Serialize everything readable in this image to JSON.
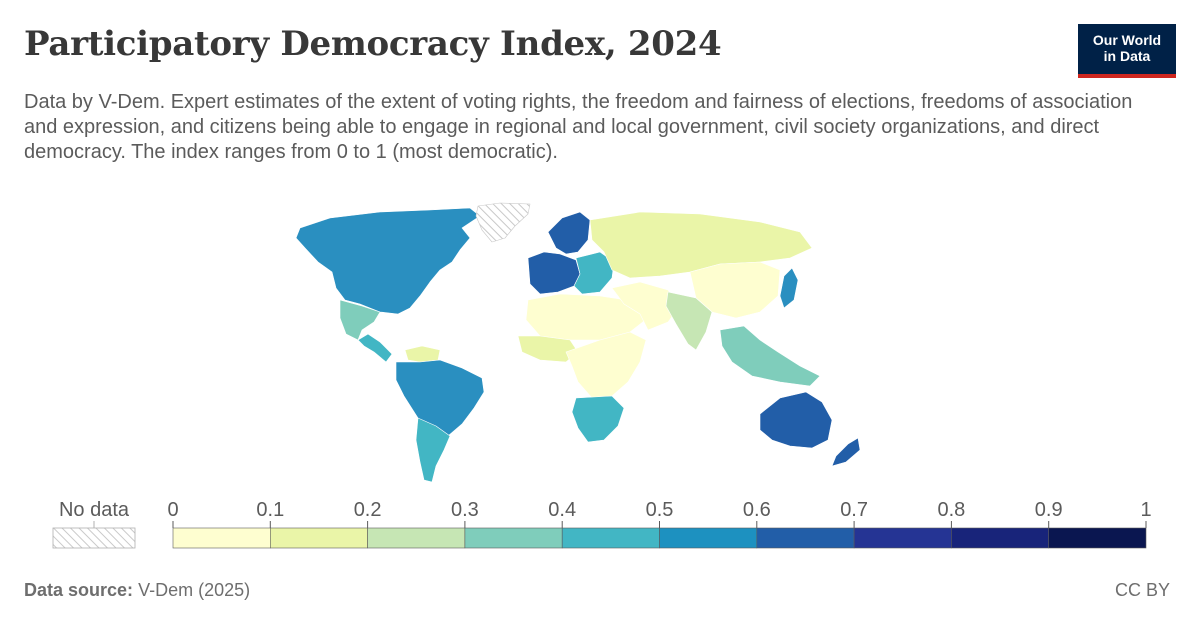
{
  "header": {
    "title": "Participatory Democracy Index, 2024",
    "subtitle": "Data by V-Dem. Expert estimates of the extent of voting rights, the freedom and fairness of elections, freedoms of association and expression, and citizens being able to engage in regional and local government, civil society organizations, and direct democracy. The index ranges from 0 to 1 (most democratic).",
    "logo_line1": "Our World",
    "logo_line2": "in Data"
  },
  "legend": {
    "no_data_label": "No data",
    "ticks": [
      "0",
      "0.1",
      "0.2",
      "0.3",
      "0.4",
      "0.5",
      "0.6",
      "0.7",
      "0.8",
      "0.9",
      "1"
    ],
    "bins": [
      {
        "range": [
          0,
          0.1
        ],
        "color": "#fefed0"
      },
      {
        "range": [
          0.1,
          0.2
        ],
        "color": "#eaf5a8"
      },
      {
        "range": [
          0.2,
          0.3
        ],
        "color": "#c6e6b4"
      },
      {
        "range": [
          0.3,
          0.4
        ],
        "color": "#7fcdbb"
      },
      {
        "range": [
          0.4,
          0.5
        ],
        "color": "#42b6c4"
      },
      {
        "range": [
          0.5,
          0.6
        ],
        "color": "#1d91c0"
      },
      {
        "range": [
          0.6,
          0.7
        ],
        "color": "#225ea8"
      },
      {
        "range": [
          0.7,
          0.8
        ],
        "color": "#253494"
      },
      {
        "range": [
          0.8,
          0.9
        ],
        "color": "#18247a"
      },
      {
        "range": [
          0.9,
          1.0
        ],
        "color": "#0a1650"
      }
    ]
  },
  "footer": {
    "source_label": "Data source:",
    "source_value": "V-Dem (2025)",
    "license": "CC BY"
  },
  "map_regions": [
    {
      "id": "north-america",
      "color": "#2a8fc0"
    },
    {
      "id": "greenland",
      "color": "no-data"
    },
    {
      "id": "mexico",
      "color": "#7fcdbb"
    },
    {
      "id": "central-america",
      "color": "#42b6c4"
    },
    {
      "id": "south-america",
      "color": "#2a8fc0"
    },
    {
      "id": "venezuela",
      "color": "#eaf5a8"
    },
    {
      "id": "argentina",
      "color": "#42b6c4"
    },
    {
      "id": "western-europe",
      "color": "#225ea8"
    },
    {
      "id": "scandinavia",
      "color": "#225ea8"
    },
    {
      "id": "eastern-europe",
      "color": "#42b6c4"
    },
    {
      "id": "russia",
      "color": "#eaf5a8"
    },
    {
      "id": "north-africa",
      "color": "#fefed0"
    },
    {
      "id": "west-africa",
      "color": "#eaf5a8"
    },
    {
      "id": "central-africa",
      "color": "#fefed0"
    },
    {
      "id": "southern-africa",
      "color": "#42b6c4"
    },
    {
      "id": "middle-east",
      "color": "#fefed0"
    },
    {
      "id": "china",
      "color": "#fefed0"
    },
    {
      "id": "india",
      "color": "#c6e6b4"
    },
    {
      "id": "japan",
      "color": "#2a8fc0"
    },
    {
      "id": "southeast-asia",
      "color": "#7fcdbb"
    },
    {
      "id": "australia",
      "color": "#225ea8"
    },
    {
      "id": "new-zealand",
      "color": "#225ea8"
    }
  ]
}
